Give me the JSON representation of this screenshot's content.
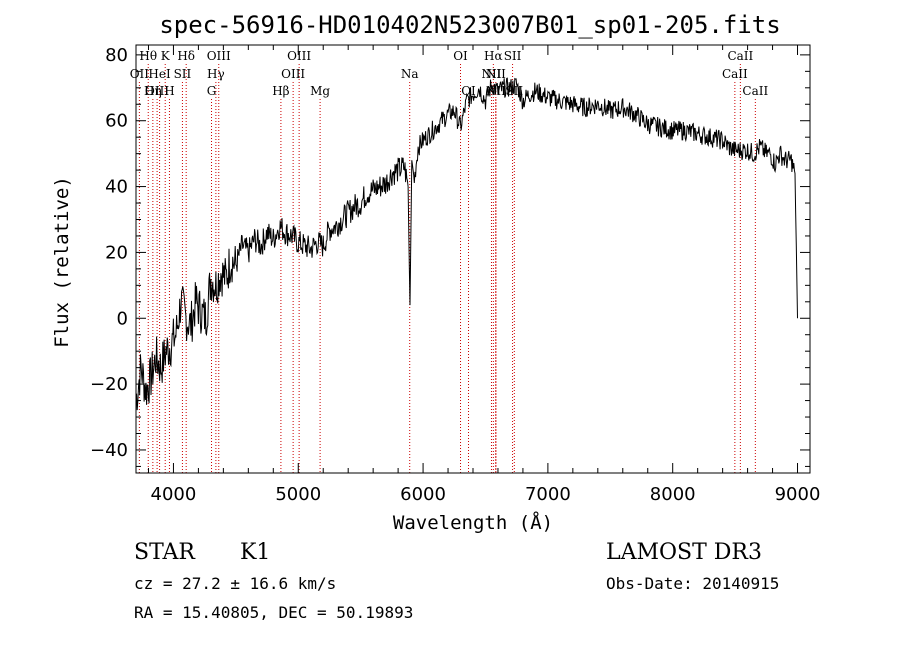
{
  "chart_data": {
    "type": "line",
    "title": "spec-56916-HD010402N523007B01_sp01-205.fits",
    "xlabel": "Wavelength (Å)",
    "ylabel": "Flux (relative)",
    "xlim": [
      3700,
      9100
    ],
    "ylim": [
      -47,
      83
    ],
    "xticks": [
      4000,
      5000,
      6000,
      7000,
      8000,
      9000
    ],
    "yticks": [
      -40,
      -20,
      0,
      20,
      40,
      60,
      80
    ],
    "series": [
      {
        "name": "flux",
        "x": [
          3700,
          3740,
          3780,
          3820,
          3860,
          3900,
          3940,
          3980,
          4020,
          4060,
          4100,
          4140,
          4180,
          4220,
          4260,
          4300,
          4340,
          4380,
          4420,
          4460,
          4500,
          4550,
          4600,
          4650,
          4700,
          4750,
          4800,
          4850,
          4900,
          4950,
          5000,
          5050,
          5100,
          5150,
          5200,
          5250,
          5300,
          5350,
          5400,
          5450,
          5500,
          5550,
          5600,
          5650,
          5700,
          5750,
          5800,
          5850,
          5880,
          5895,
          5910,
          5930,
          5960,
          6000,
          6050,
          6100,
          6150,
          6200,
          6250,
          6300,
          6350,
          6400,
          6450,
          6500,
          6550,
          6600,
          6650,
          6700,
          6750,
          6800,
          6850,
          6900,
          6950,
          7000,
          7100,
          7200,
          7300,
          7400,
          7500,
          7600,
          7700,
          7800,
          7900,
          8000,
          8100,
          8200,
          8300,
          8400,
          8450,
          8500,
          8550,
          8600,
          8650,
          8700,
          8750,
          8780,
          8820,
          8860,
          8900,
          8950,
          8980,
          9000
        ],
        "y": [
          -25,
          -15,
          -22,
          -18,
          -12,
          -15,
          -10,
          -8,
          -5,
          5,
          0,
          -2,
          5,
          2,
          0,
          12,
          10,
          14,
          12,
          18,
          16,
          22,
          20,
          24,
          22,
          26,
          24,
          28,
          26,
          25,
          23,
          22,
          21,
          23,
          22,
          27,
          28,
          30,
          32,
          34,
          35,
          38,
          39,
          40,
          41,
          44,
          45,
          46,
          40,
          4,
          48,
          42,
          52,
          54,
          56,
          58,
          60,
          62,
          63,
          58,
          66,
          68,
          70,
          66,
          71,
          69,
          70,
          70,
          71,
          66,
          68,
          69,
          68,
          67,
          66,
          65,
          64,
          65,
          63,
          64,
          62,
          59,
          58,
          57,
          57,
          56,
          55,
          54,
          52,
          51,
          51,
          51,
          50,
          52,
          50,
          50,
          47,
          50,
          48,
          48,
          44,
          0
        ]
      }
    ],
    "lines": [
      {
        "label": "Hθ",
        "x": 3798,
        "row": 0
      },
      {
        "label": "K",
        "x": 3934,
        "row": 0
      },
      {
        "label": "Hδ",
        "x": 4102,
        "row": 0
      },
      {
        "label": "OIII",
        "x": 4363,
        "row": 0
      },
      {
        "label": "OIII",
        "x": 5007,
        "row": 0
      },
      {
        "label": "OI",
        "x": 6300,
        "row": 0
      },
      {
        "label": "Hα",
        "x": 6563,
        "row": 0
      },
      {
        "label": "SII",
        "x": 6717,
        "row": 0
      },
      {
        "label": "CaII",
        "x": 8542,
        "row": 0
      },
      {
        "label": "OII",
        "x": 3727,
        "row": 1
      },
      {
        "label": "HeI",
        "x": 3889,
        "row": 1
      },
      {
        "label": "SII",
        "x": 4072,
        "row": 1
      },
      {
        "label": "Hγ",
        "x": 4340,
        "row": 1
      },
      {
        "label": "OIII",
        "x": 4959,
        "row": 1
      },
      {
        "label": "Na",
        "x": 5893,
        "row": 1
      },
      {
        "label": "NII",
        "x": 6548,
        "row": 1
      },
      {
        "label": "NII",
        "x": 6583,
        "row": 1
      },
      {
        "label": "CaII",
        "x": 8498,
        "row": 1
      },
      {
        "label": "OIII",
        "x": 3869,
        "row": 2
      },
      {
        "label": "Hη",
        "x": 3835,
        "row": 2
      },
      {
        "label": "H",
        "x": 3968,
        "row": 2
      },
      {
        "label": "G",
        "x": 4305,
        "row": 2
      },
      {
        "label": "Hβ",
        "x": 4861,
        "row": 2
      },
      {
        "label": "Mg",
        "x": 5175,
        "row": 2
      },
      {
        "label": "OI",
        "x": 6364,
        "row": 2
      },
      {
        "label": "NII",
        "x": 6583,
        "row": 2
      },
      {
        "label": "SII",
        "x": 6731,
        "row": 2
      },
      {
        "label": "CaII",
        "x": 8662,
        "row": 2
      }
    ]
  },
  "info": {
    "class": "STAR",
    "subclass": "K1",
    "survey": "LAMOST DR3",
    "cz": "cz = 27.2 ± 16.6 km/s",
    "obsdate": "Obs-Date: 20140915",
    "radec": "RA =  15.40805, DEC =  50.19893"
  },
  "colors": {
    "line_marker": "#cc0000",
    "spectrum": "#000000"
  }
}
